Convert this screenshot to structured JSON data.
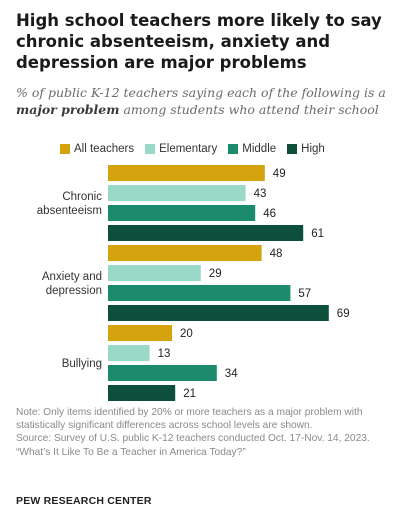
{
  "title": "High school teachers more likely to say chronic absenteeism, anxiety and depression are major problems",
  "subtitle": {
    "pre": "% of public K-12 teachers saying each of the following is a ",
    "emphasis": "major problem",
    "post": " among students who attend their school"
  },
  "notes": {
    "note": "Note: Only items identified by 20% or more teachers as a major problem with statistically significant differences across school levels are shown.",
    "source": "Source: Survey of U.S. public K-12 teachers conducted Oct. 17-Nov. 14, 2023.",
    "report": "“What’s It Like To Be a Teacher in America Today?”"
  },
  "organization": "PEW RESEARCH CENTER",
  "chart_data": {
    "type": "bar",
    "orientation": "horizontal",
    "categories": [
      {
        "lines": [
          "Chronic",
          "absenteeism"
        ]
      },
      {
        "lines": [
          "Anxiety and",
          "depression"
        ]
      },
      {
        "lines": [
          "Bullying"
        ]
      }
    ],
    "series": [
      {
        "name": "All teachers",
        "color": "#d4a20d",
        "values": [
          49,
          48,
          20
        ]
      },
      {
        "name": "Elementary",
        "color": "#9ad9c8",
        "values": [
          43,
          29,
          13
        ]
      },
      {
        "name": "Middle",
        "color": "#1c8a6c",
        "values": [
          46,
          57,
          34
        ]
      },
      {
        "name": "High",
        "color": "#0e4f3c",
        "values": [
          61,
          69,
          21
        ]
      }
    ],
    "xlim": [
      0,
      100
    ],
    "grid": false,
    "legend_position": "top",
    "data_labels": true
  }
}
